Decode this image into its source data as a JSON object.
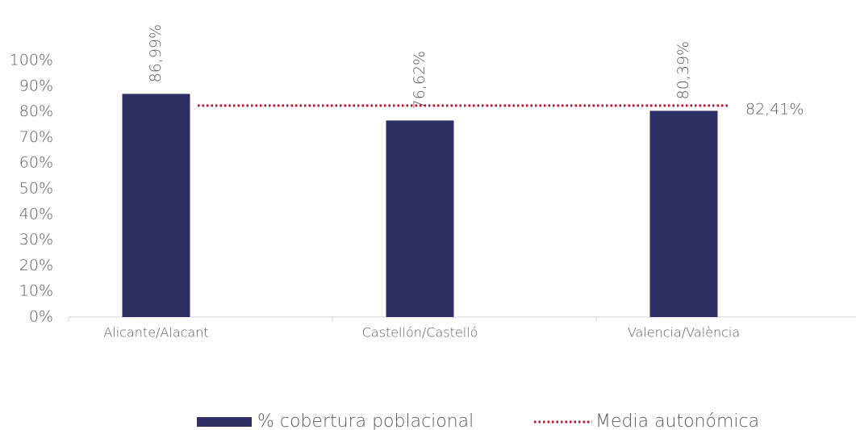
{
  "chart_data": {
    "type": "bar",
    "categories": [
      "Alicante/Alacant",
      "Castellón/Castelló",
      "Valencia/València"
    ],
    "series": [
      {
        "name": "% cobertura poblacional",
        "color": "#2f2f66",
        "values": [
          86.99,
          76.62,
          80.39
        ],
        "value_labels": [
          "86,99%",
          "76,62%",
          "80,39%"
        ]
      }
    ],
    "reference_line": {
      "name": "Media autonómica",
      "color": "#c8102e",
      "value": 82.41,
      "value_label": "82,41%"
    },
    "ylim": [
      0,
      100
    ],
    "yticks": [
      {
        "value": 0,
        "label": "0%"
      },
      {
        "value": 10,
        "label": "10%"
      },
      {
        "value": 20,
        "label": "20%"
      },
      {
        "value": 30,
        "label": "30%"
      },
      {
        "value": 40,
        "label": "40%"
      },
      {
        "value": 50,
        "label": "50%"
      },
      {
        "value": 60,
        "label": "60%"
      },
      {
        "value": 70,
        "label": "70%"
      },
      {
        "value": 80,
        "label": "80%"
      },
      {
        "value": 90,
        "label": "90%"
      },
      {
        "value": 100,
        "label": "100%"
      }
    ]
  }
}
